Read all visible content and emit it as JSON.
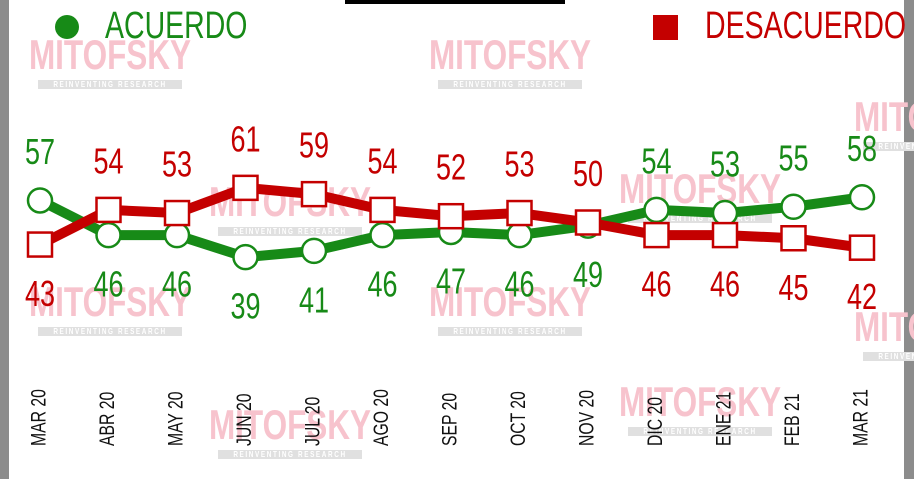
{
  "chart_data": {
    "type": "line",
    "categories": [
      "MAR 20",
      "ABR 20",
      "MAY 20",
      "JUN 20",
      "JUL 20",
      "AGO 20",
      "SEP 20",
      "OCT 20",
      "NOV 20",
      "DIC 20",
      "ENE 21",
      "FEB 21",
      "MAR 21"
    ],
    "series": [
      {
        "name": "ACUERDO",
        "color": "#178a17",
        "marker": "circle",
        "values": [
          57,
          46,
          46,
          39,
          41,
          46,
          47,
          46,
          49,
          54,
          53,
          55,
          58
        ]
      },
      {
        "name": "DESACUERDO",
        "color": "#c40000",
        "marker": "square",
        "values": [
          43,
          54,
          53,
          61,
          59,
          54,
          52,
          53,
          50,
          46,
          46,
          45,
          42
        ]
      }
    ],
    "ylim": [
      0,
      100
    ],
    "watermark": "MITOFSKY",
    "watermark_tagline": "REINVENTING RESEARCH"
  }
}
